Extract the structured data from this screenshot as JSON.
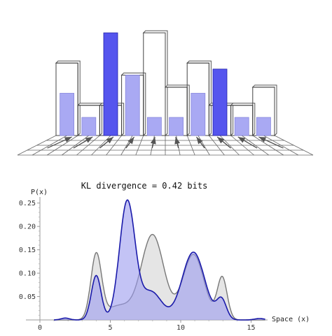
{
  "chart_data": [
    {
      "type": "bar",
      "view": "3d-histogram",
      "bins": 10,
      "series": [
        {
          "name": "",
          "role": "outline",
          "values": [
            0.12,
            0.05,
            0.05,
            0.1,
            0.17,
            0.08,
            0.12,
            0.05,
            0.05,
            0.08
          ]
        },
        {
          "name": "",
          "role": "filled",
          "values": [
            0.07,
            0.03,
            0.17,
            0.1,
            0.03,
            0.03,
            0.07,
            0.11,
            0.03,
            0.03
          ]
        }
      ],
      "grid": true,
      "arrows": true
    },
    {
      "type": "area",
      "title": "KL divergence = 0.42 bits",
      "xlabel": "Space (x)",
      "ylabel": "P(x)",
      "xlim": [
        0,
        16
      ],
      "ylim": [
        0,
        0.26
      ],
      "xticks": [
        "0",
        "5",
        "10",
        "15"
      ],
      "yticks": [
        "0.05",
        "0.10",
        "0.15",
        "0.20",
        "0.25"
      ],
      "series": [
        {
          "name": "",
          "color": "#777777",
          "fill": "#cfcfcf",
          "components": [
            {
              "mu": 4.0,
              "sigma": 0.38,
              "amp": 0.138
            },
            {
              "mu": 5.6,
              "sigma": 0.9,
              "amp": 0.03
            },
            {
              "mu": 8.0,
              "sigma": 0.8,
              "amp": 0.182
            },
            {
              "mu": 10.9,
              "sigma": 0.75,
              "amp": 0.14
            },
            {
              "mu": 12.95,
              "sigma": 0.35,
              "amp": 0.09
            }
          ]
        },
        {
          "name": "",
          "color": "#1a1aaa",
          "fill": "#9b9bef",
          "components": [
            {
              "mu": 1.8,
              "sigma": 0.3,
              "amp": 0.004
            },
            {
              "mu": 4.0,
              "sigma": 0.35,
              "amp": 0.095
            },
            {
              "mu": 6.2,
              "sigma": 0.55,
              "amp": 0.252
            },
            {
              "mu": 7.9,
              "sigma": 0.75,
              "amp": 0.06
            },
            {
              "mu": 10.9,
              "sigma": 0.8,
              "amp": 0.145
            },
            {
              "mu": 12.9,
              "sigma": 0.35,
              "amp": 0.042
            },
            {
              "mu": 15.6,
              "sigma": 0.35,
              "amp": 0.003
            }
          ]
        }
      ]
    }
  ]
}
